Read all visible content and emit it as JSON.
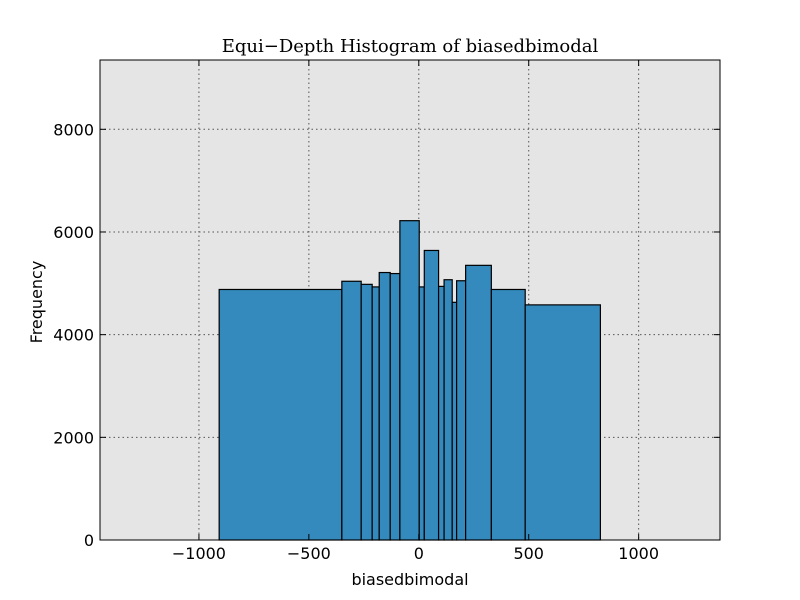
{
  "chart_data": {
    "type": "bar",
    "title": "Equi−Depth Histogram of biasedbimodal",
    "xlabel": "biasedbimodal",
    "ylabel": "Frequency",
    "xlim": [
      -1450,
      1370
    ],
    "ylim": [
      0,
      9350
    ],
    "xticks": [
      -1000,
      -500,
      0,
      500,
      1000
    ],
    "xtick_labels": [
      "−1000",
      "−500",
      "0",
      "500",
      "1000"
    ],
    "yticks": [
      0,
      2000,
      4000,
      6000,
      8000
    ],
    "ytick_labels": [
      "0",
      "2000",
      "4000",
      "6000",
      "8000"
    ],
    "grid": true,
    "colors": {
      "background": "#e5e5e5",
      "bar_fill": "#348abd",
      "bar_edge": "#000000",
      "grid": "#555555"
    },
    "bins": [
      {
        "left": -908,
        "right": -350,
        "value": 4880
      },
      {
        "left": -350,
        "right": -262,
        "value": 5040
      },
      {
        "left": -262,
        "right": -212,
        "value": 4980
      },
      {
        "left": -212,
        "right": -180,
        "value": 4930
      },
      {
        "left": -180,
        "right": -130,
        "value": 5210
      },
      {
        "left": -130,
        "right": -86,
        "value": 5190
      },
      {
        "left": -86,
        "right": 2,
        "value": 6220
      },
      {
        "left": 2,
        "right": 25,
        "value": 4930
      },
      {
        "left": 25,
        "right": 90,
        "value": 5640
      },
      {
        "left": 90,
        "right": 115,
        "value": 4940
      },
      {
        "left": 115,
        "right": 152,
        "value": 5070
      },
      {
        "left": 152,
        "right": 172,
        "value": 4630
      },
      {
        "left": 172,
        "right": 213,
        "value": 5050
      },
      {
        "left": 213,
        "right": 330,
        "value": 5350
      },
      {
        "left": 330,
        "right": 484,
        "value": 4880
      },
      {
        "left": 484,
        "right": 826,
        "value": 4580
      }
    ]
  }
}
